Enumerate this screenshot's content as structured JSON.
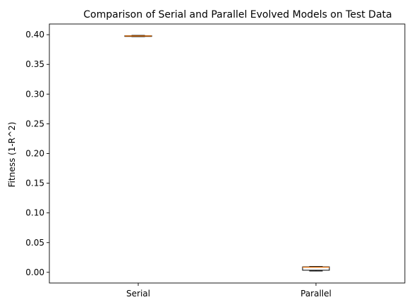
{
  "chart_data": {
    "type": "box",
    "title": "Comparison of Serial and Parallel Evolved Models on Test Data",
    "xlabel": "",
    "ylabel": "Fitness (1-R^2)",
    "ylim": [
      -0.018,
      0.418
    ],
    "yticks": [
      0.0,
      0.05,
      0.1,
      0.15,
      0.2,
      0.25,
      0.3,
      0.35,
      0.4
    ],
    "ytick_labels": [
      "0.00",
      "0.05",
      "0.10",
      "0.15",
      "0.20",
      "0.25",
      "0.30",
      "0.35",
      "0.40"
    ],
    "categories": [
      "Serial",
      "Parallel"
    ],
    "boxes": [
      {
        "label": "Serial",
        "whislo": 0.3968,
        "q1": 0.3974,
        "med": 0.3978,
        "q3": 0.3982,
        "whishi": 0.3988
      },
      {
        "label": "Parallel",
        "whislo": 0.0022,
        "q1": 0.0035,
        "med": 0.0085,
        "q3": 0.0092,
        "whishi": 0.0097
      }
    ],
    "grid": false,
    "colors": {
      "box": "#000000",
      "median": "#ff7f0e",
      "spine": "#000000"
    }
  }
}
